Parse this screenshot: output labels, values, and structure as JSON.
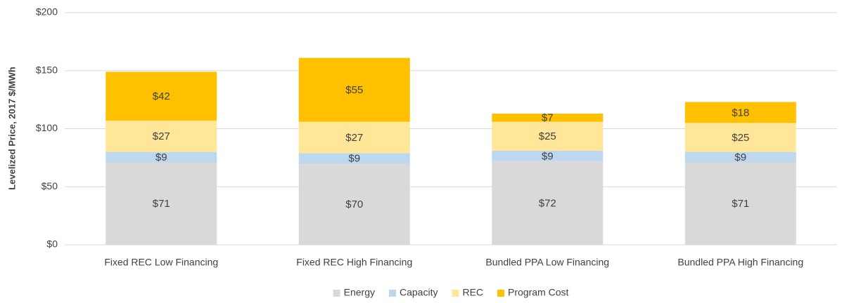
{
  "chart_data": {
    "type": "stacked_bar",
    "y_axis_label": "Levelized Price, 2017 $/MWh",
    "categories": [
      "Fixed REC Low Financing",
      "Fixed REC High Financing",
      "Bundled PPA Low Financing",
      "Bundled PPA High Financing"
    ],
    "series": [
      {
        "name": "Energy",
        "color": "#d9d9d9",
        "values": [
          71,
          70,
          72,
          71
        ],
        "value_labels": [
          "$71",
          "$70",
          "$72",
          "$71"
        ]
      },
      {
        "name": "Capacity",
        "color": "#bdd7ee",
        "values": [
          9,
          9,
          9,
          9
        ],
        "value_labels": [
          "$9",
          "$9",
          "$9",
          "$9"
        ]
      },
      {
        "name": "REC",
        "color": "#ffe699",
        "values": [
          27,
          27,
          25,
          25
        ],
        "value_labels": [
          "$27",
          "$27",
          "$25",
          "$25"
        ]
      },
      {
        "name": "Program Cost",
        "color": "#ffc000",
        "values": [
          42,
          55,
          7,
          18
        ],
        "value_labels": [
          "$42",
          "$55",
          "$7",
          "$18"
        ]
      }
    ],
    "ylim": [
      0,
      200
    ],
    "yticks": [
      {
        "value": 0,
        "label": "$0"
      },
      {
        "value": 50,
        "label": "$50"
      },
      {
        "value": 100,
        "label": "$100"
      },
      {
        "value": 150,
        "label": "$150"
      },
      {
        "value": 200,
        "label": "$200"
      }
    ],
    "grid": true,
    "legend": "bottom"
  }
}
